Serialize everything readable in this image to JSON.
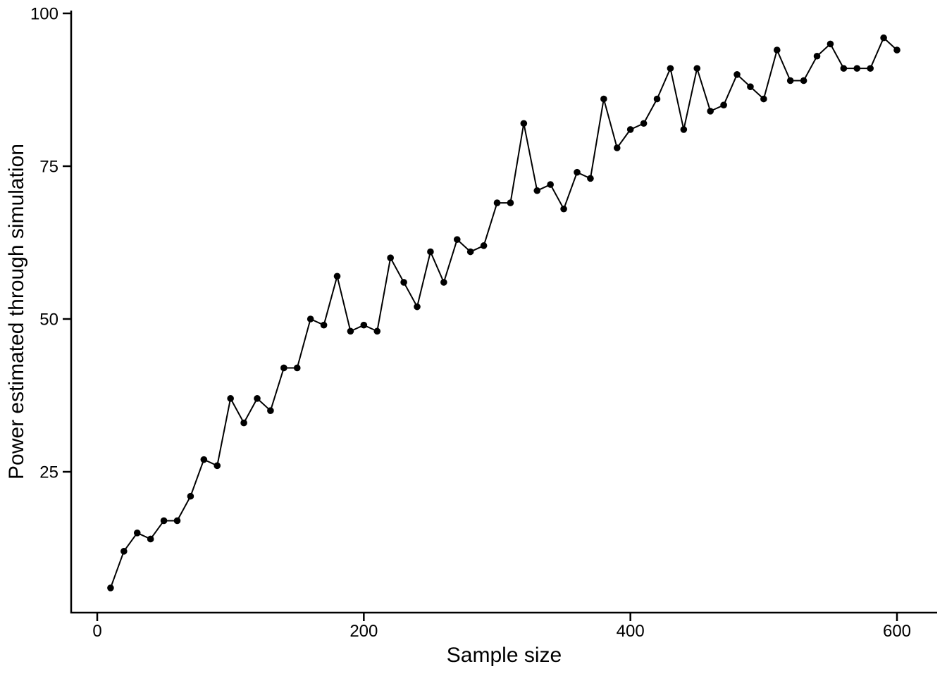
{
  "chart_data": {
    "type": "line",
    "title": "",
    "xlabel": "Sample size",
    "ylabel": "Power estimated through simulation",
    "x": [
      10,
      20,
      30,
      40,
      50,
      60,
      70,
      80,
      90,
      100,
      110,
      120,
      130,
      140,
      150,
      160,
      170,
      180,
      190,
      200,
      210,
      220,
      230,
      240,
      250,
      260,
      270,
      280,
      290,
      300,
      310,
      320,
      330,
      340,
      350,
      360,
      370,
      380,
      390,
      400,
      410,
      420,
      430,
      440,
      450,
      460,
      470,
      480,
      490,
      500,
      510,
      520,
      530,
      540,
      550,
      560,
      570,
      580,
      590,
      600
    ],
    "y": [
      6,
      12,
      15,
      14,
      17,
      17,
      21,
      27,
      26,
      37,
      33,
      37,
      35,
      42,
      42,
      50,
      49,
      57,
      48,
      49,
      48,
      60,
      56,
      52,
      61,
      56,
      63,
      61,
      62,
      69,
      69,
      82,
      71,
      72,
      68,
      74,
      73,
      86,
      78,
      81,
      82,
      86,
      91,
      81,
      91,
      84,
      85,
      90,
      88,
      86,
      94,
      89,
      89,
      93,
      95,
      91,
      91,
      91,
      96,
      94
    ],
    "xticks": [
      0,
      200,
      400,
      600
    ],
    "yticks": [
      25,
      50,
      75,
      100
    ],
    "xlim": [
      0,
      610
    ],
    "ylim": [
      0,
      100
    ],
    "grid": false,
    "legend_position": "none",
    "marker": "filled-circle",
    "series_color": "#000000",
    "axis_color": "#000000",
    "background_color": "#ffffff"
  }
}
